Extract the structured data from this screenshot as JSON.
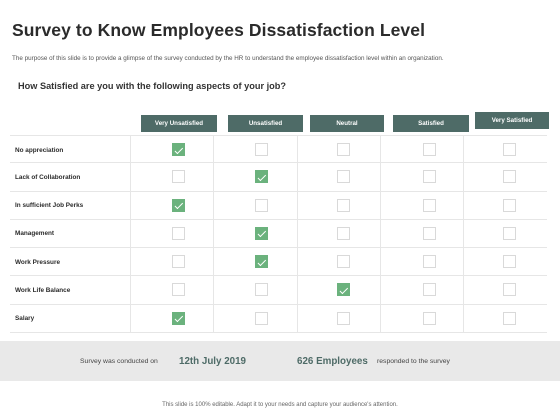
{
  "title": "Survey to Know Employees Dissatisfaction Level",
  "subtitle": "The purpose of this slide is to provide a glimpse of the survey conducted by the HR to understand the employee dissatisfaction level within an organization.",
  "question": "How Satisfied are you with the following aspects of your job?",
  "columns": [
    "Very Unsatisfied",
    "Unsatisfied",
    "Neutral",
    "Satisfied",
    "Very Satisfied"
  ],
  "rows": [
    {
      "label": "No appreciation",
      "checked": 0
    },
    {
      "label": "Lack of Collaboration",
      "checked": 1
    },
    {
      "label": "In sufficient Job Perks",
      "checked": 0
    },
    {
      "label": "Management",
      "checked": 1
    },
    {
      "label": "Work Pressure",
      "checked": 1
    },
    {
      "label": "Work Life Balance",
      "checked": 2
    },
    {
      "label": "Salary",
      "checked": 0
    }
  ],
  "footer": {
    "prefix": "Survey was conducted on",
    "date": "12th July 2019",
    "count": "626 Employees",
    "suffix": "responded to the survey"
  },
  "note": "This slide is 100% editable. Adapt it to your needs and capture your audience's attention.",
  "colors": {
    "header": "#4e6b67",
    "check": "#6bb27d"
  }
}
